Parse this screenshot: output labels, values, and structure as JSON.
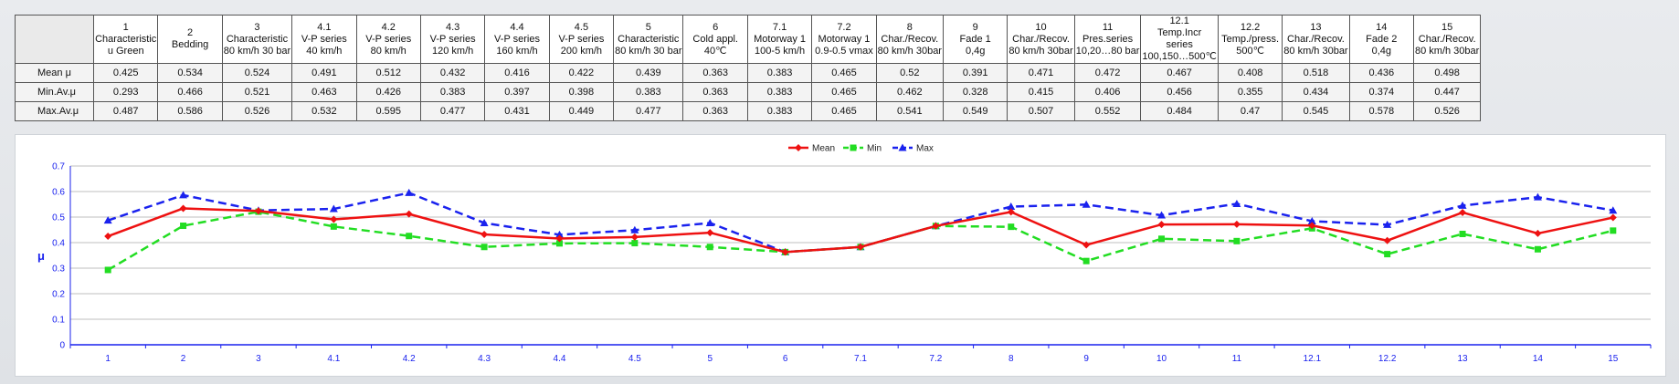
{
  "table": {
    "columns": [
      {
        "num": "1",
        "lines": [
          "Characteristic",
          "u Green"
        ]
      },
      {
        "num": "2",
        "lines": [
          "Bedding"
        ]
      },
      {
        "num": "3",
        "lines": [
          "Characteristic",
          "80 km/h 30 bar"
        ]
      },
      {
        "num": "4.1",
        "lines": [
          "V-P series",
          "40 km/h"
        ]
      },
      {
        "num": "4.2",
        "lines": [
          "V-P series",
          "80 km/h"
        ]
      },
      {
        "num": "4.3",
        "lines": [
          "V-P series",
          "120 km/h"
        ]
      },
      {
        "num": "4.4",
        "lines": [
          "V-P series",
          "160 km/h"
        ]
      },
      {
        "num": "4.5",
        "lines": [
          "V-P series",
          "200 km/h"
        ]
      },
      {
        "num": "5",
        "lines": [
          "Characteristic",
          "80 km/h 30 bar"
        ]
      },
      {
        "num": "6",
        "lines": [
          "Cold appl.",
          "40℃"
        ]
      },
      {
        "num": "7.1",
        "lines": [
          "Motorway 1",
          "100-5 km/h"
        ]
      },
      {
        "num": "7.2",
        "lines": [
          "Motorway 1",
          "0.9-0.5 vmax"
        ]
      },
      {
        "num": "8",
        "lines": [
          "Char./Recov.",
          "80 km/h 30bar"
        ]
      },
      {
        "num": "9",
        "lines": [
          "Fade 1",
          "0,4g"
        ]
      },
      {
        "num": "10",
        "lines": [
          "Char./Recov.",
          "80 km/h 30bar"
        ]
      },
      {
        "num": "11",
        "lines": [
          "Pres.series",
          "10,20…80 bar"
        ]
      },
      {
        "num": "12.1",
        "lines": [
          "Temp.Incr",
          "series",
          "100,150…500℃"
        ]
      },
      {
        "num": "12.2",
        "lines": [
          "Temp./press.",
          "500℃"
        ]
      },
      {
        "num": "13",
        "lines": [
          "Char./Recov.",
          "80 km/h 30bar"
        ]
      },
      {
        "num": "14",
        "lines": [
          "Fade 2",
          "0,4g"
        ]
      },
      {
        "num": "15",
        "lines": [
          "Char./Recov.",
          "80 km/h 30bar"
        ]
      }
    ],
    "rows": [
      {
        "label": "Mean μ",
        "values": [
          "0.425",
          "0.534",
          "0.524",
          "0.491",
          "0.512",
          "0.432",
          "0.416",
          "0.422",
          "0.439",
          "0.363",
          "0.383",
          "0.465",
          "0.52",
          "0.391",
          "0.471",
          "0.472",
          "0.467",
          "0.408",
          "0.518",
          "0.436",
          "0.498"
        ]
      },
      {
        "label": "Min.Av.μ",
        "values": [
          "0.293",
          "0.466",
          "0.521",
          "0.463",
          "0.426",
          "0.383",
          "0.397",
          "0.398",
          "0.383",
          "0.363",
          "0.383",
          "0.465",
          "0.462",
          "0.328",
          "0.415",
          "0.406",
          "0.456",
          "0.355",
          "0.434",
          "0.374",
          "0.447"
        ]
      },
      {
        "label": "Max.Av.μ",
        "values": [
          "0.487",
          "0.586",
          "0.526",
          "0.532",
          "0.595",
          "0.477",
          "0.431",
          "0.449",
          "0.477",
          "0.363",
          "0.383",
          "0.465",
          "0.541",
          "0.549",
          "0.507",
          "0.552",
          "0.484",
          "0.47",
          "0.545",
          "0.578",
          "0.526"
        ]
      }
    ]
  },
  "chart_data": {
    "type": "line",
    "categories": [
      "1",
      "2",
      "3",
      "4.1",
      "4.2",
      "4.3",
      "4.4",
      "4.5",
      "5",
      "6",
      "7.1",
      "7.2",
      "8",
      "9",
      "10",
      "11",
      "12.1",
      "12.2",
      "13",
      "14",
      "15"
    ],
    "series": [
      {
        "name": "Mean",
        "color": "#ee1111",
        "dash": "solid",
        "marker": "diamond",
        "values": [
          0.425,
          0.534,
          0.524,
          0.491,
          0.512,
          0.432,
          0.416,
          0.422,
          0.439,
          0.363,
          0.383,
          0.465,
          0.52,
          0.391,
          0.471,
          0.472,
          0.467,
          0.408,
          0.518,
          0.436,
          0.498
        ]
      },
      {
        "name": "Min",
        "color": "#22dd22",
        "dash": "dashed",
        "marker": "square",
        "values": [
          0.293,
          0.466,
          0.521,
          0.463,
          0.426,
          0.383,
          0.397,
          0.398,
          0.383,
          0.363,
          0.383,
          0.465,
          0.462,
          0.328,
          0.415,
          0.406,
          0.456,
          0.355,
          0.434,
          0.374,
          0.447
        ]
      },
      {
        "name": "Max",
        "color": "#1a22ee",
        "dash": "dashed",
        "marker": "triangle",
        "values": [
          0.487,
          0.586,
          0.526,
          0.532,
          0.595,
          0.477,
          0.431,
          0.449,
          0.477,
          0.363,
          0.383,
          0.465,
          0.541,
          0.549,
          0.507,
          0.552,
          0.484,
          0.47,
          0.545,
          0.578,
          0.526
        ]
      }
    ],
    "ylabel": "μ",
    "ylim": [
      0,
      0.7
    ],
    "yticks": [
      "0",
      "0.1",
      "0.2",
      "0.3",
      "0.4",
      "0.5",
      "0.6",
      "0.7"
    ],
    "grid": true,
    "legend": "top-center",
    "axis_color": "#1a22ee"
  }
}
